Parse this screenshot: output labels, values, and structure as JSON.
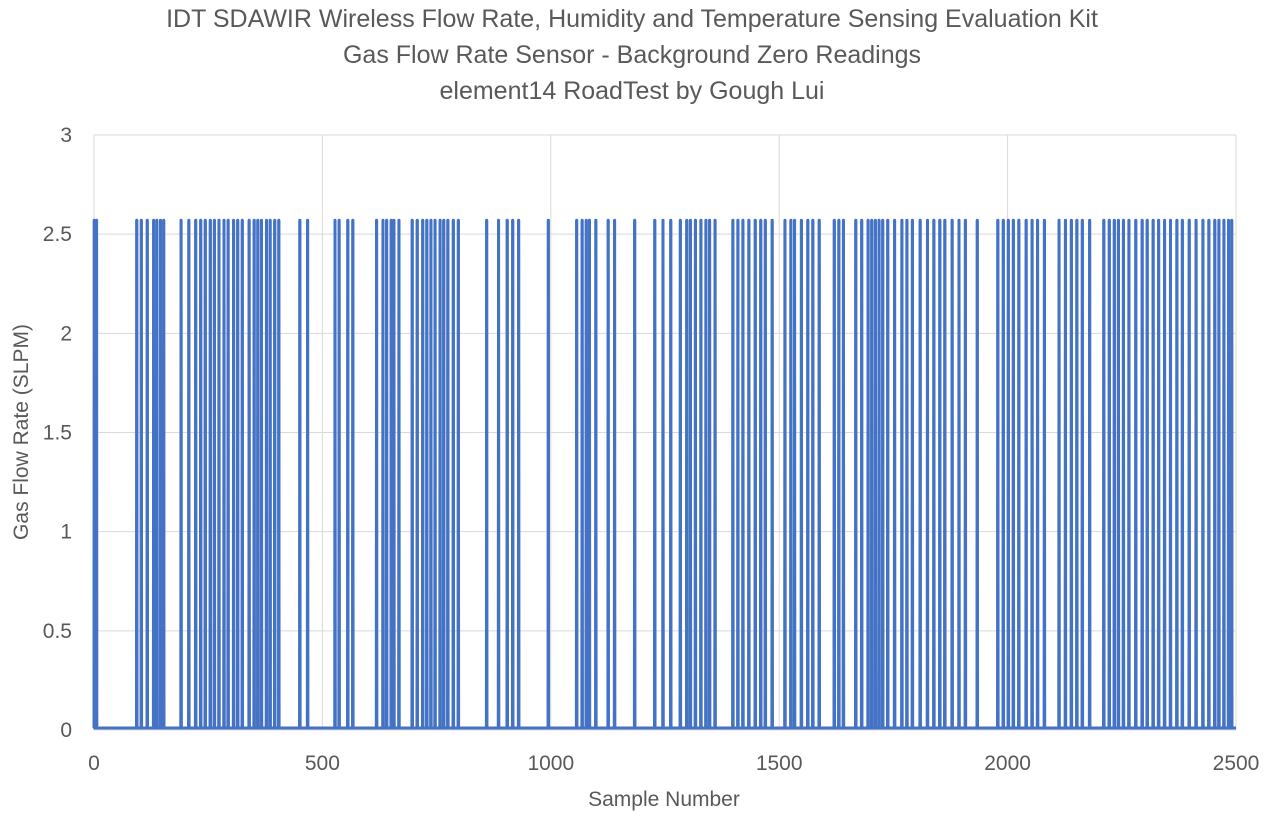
{
  "chart_data": {
    "type": "line",
    "title_lines": [
      "IDT SDAWIR Wireless Flow Rate, Humidity and Temperature Sensing Evaluation Kit",
      "Gas Flow Rate Sensor - Background Zero Readings",
      "element14 RoadTest by Gough Lui"
    ],
    "xlabel": "Sample Number",
    "ylabel": "Gas Flow Rate (SLPM)",
    "xlim": [
      0,
      2500
    ],
    "ylim": [
      0,
      3
    ],
    "x_ticks": [
      "0",
      "500",
      "1000",
      "1500",
      "2000",
      "2500"
    ],
    "y_ticks": [
      "0",
      "0.5",
      "1",
      "1.5",
      "2",
      "2.5",
      "3"
    ],
    "grid": true,
    "legend": "none",
    "series_color": "#4472C4",
    "series": [
      {
        "baseline": 0.01,
        "spike_value": 2.57,
        "spike_x": [
          0,
          5,
          93,
          103,
          116,
          130,
          137,
          145,
          152,
          190,
          207,
          222,
          233,
          243,
          254,
          263,
          273,
          284,
          293,
          305,
          314,
          324,
          339,
          350,
          358,
          366,
          377,
          385,
          395,
          404,
          450,
          467,
          527,
          536,
          555,
          566,
          618,
          632,
          640,
          650,
          656,
          667,
          696,
          707,
          719,
          728,
          737,
          746,
          757,
          765,
          774,
          786,
          797,
          859,
          885,
          904,
          916,
          929,
          994,
          1056,
          1068,
          1077,
          1084,
          1098,
          1125,
          1139,
          1183,
          1227,
          1245,
          1262,
          1283,
          1297,
          1305,
          1316,
          1328,
          1339,
          1347,
          1359,
          1398,
          1409,
          1420,
          1433,
          1447,
          1459,
          1469,
          1484,
          1512,
          1525,
          1533,
          1548,
          1562,
          1573,
          1587,
          1620,
          1630,
          1640,
          1667,
          1680,
          1694,
          1702,
          1710,
          1718,
          1726,
          1737,
          1752,
          1768,
          1779,
          1791,
          1808,
          1824,
          1838,
          1851,
          1862,
          1878,
          1893,
          1907,
          1933,
          1978,
          1990,
          2001,
          2012,
          2024,
          2040,
          2053,
          2065,
          2080,
          2112,
          2126,
          2139,
          2151,
          2163,
          2179,
          2210,
          2222,
          2233,
          2242,
          2253,
          2265,
          2280,
          2294,
          2305,
          2318,
          2330,
          2343,
          2356,
          2370,
          2382,
          2397,
          2412,
          2427,
          2440,
          2453,
          2462,
          2473,
          2483,
          2490
        ]
      }
    ]
  }
}
